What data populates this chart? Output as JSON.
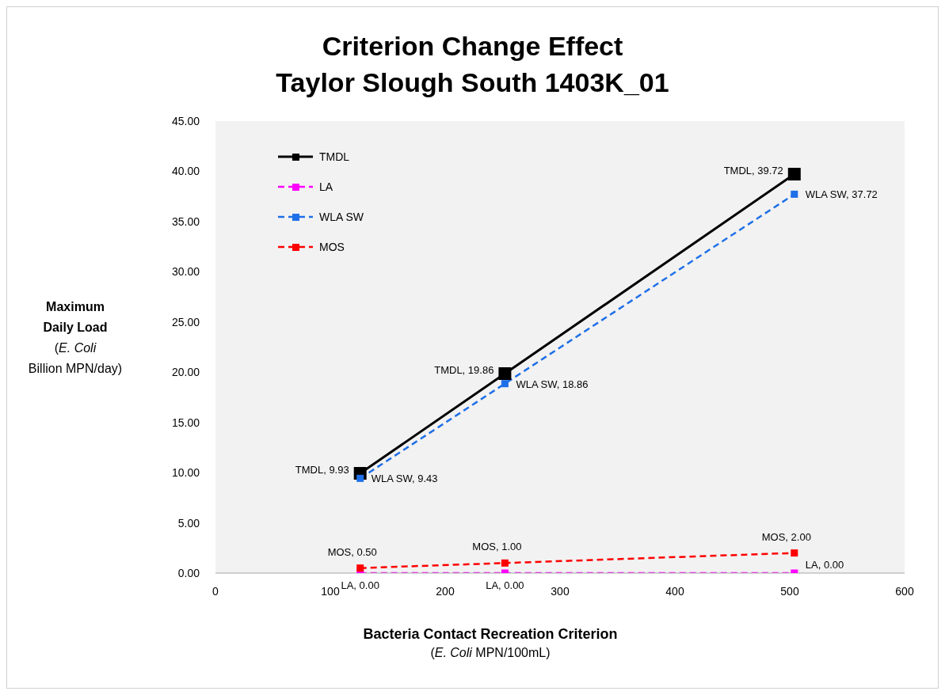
{
  "chart_data": {
    "type": "line",
    "title": "Criterion Change Effect\nTaylor Slough South 1403K_01",
    "xlabel": "Bacteria Contact Recreation Criterion\n(E. Coli MPN/100mL)",
    "ylabel": "Maximum\nDaily Load\n(E. Coli\nBillion MPN/day)",
    "x": [
      126,
      252,
      504
    ],
    "series": [
      {
        "name": "TMDL",
        "color": "#000000",
        "line_style": "solid",
        "values": [
          9.93,
          19.86,
          39.72
        ],
        "value_labels": [
          "TMDL, 9.93",
          "TMDL, 19.86",
          "TMDL, 39.72"
        ]
      },
      {
        "name": "LA",
        "color": "#ff00ff",
        "line_style": "dashed",
        "values": [
          0,
          0,
          0
        ],
        "value_labels": [
          "LA, 0.00",
          "LA, 0.00",
          "LA, 0.00"
        ]
      },
      {
        "name": "WLA SW",
        "color": "#1e6fe8",
        "line_style": "dashed",
        "values": [
          9.43,
          18.86,
          37.72
        ],
        "value_labels": [
          "WLA SW, 9.43",
          "WLA SW, 18.86",
          "WLA SW, 37.72"
        ]
      },
      {
        "name": "MOS",
        "color": "#ff0000",
        "line_style": "dashed",
        "values": [
          0.5,
          1,
          2
        ],
        "value_labels": [
          "MOS, 0.50",
          "MOS, 1.00",
          "MOS, 2.00"
        ]
      }
    ],
    "xlim": [
      0,
      600
    ],
    "xticks": [
      0,
      100,
      200,
      300,
      400,
      500,
      600
    ],
    "ylim": [
      0,
      45
    ],
    "yticks": [
      {
        "value": 0,
        "label": "0.00"
      },
      {
        "value": 5,
        "label": "5.00"
      },
      {
        "value": 10,
        "label": "10.00"
      },
      {
        "value": 15,
        "label": "15.00"
      },
      {
        "value": 20,
        "label": "20.00"
      },
      {
        "value": 25,
        "label": "25.00"
      },
      {
        "value": 30,
        "label": "30.00"
      },
      {
        "value": 35,
        "label": "35.00"
      },
      {
        "value": 40,
        "label": "40.00"
      },
      {
        "value": 45,
        "label": "45.00"
      }
    ],
    "grid": false,
    "legend": "top left",
    "marker": "square"
  }
}
